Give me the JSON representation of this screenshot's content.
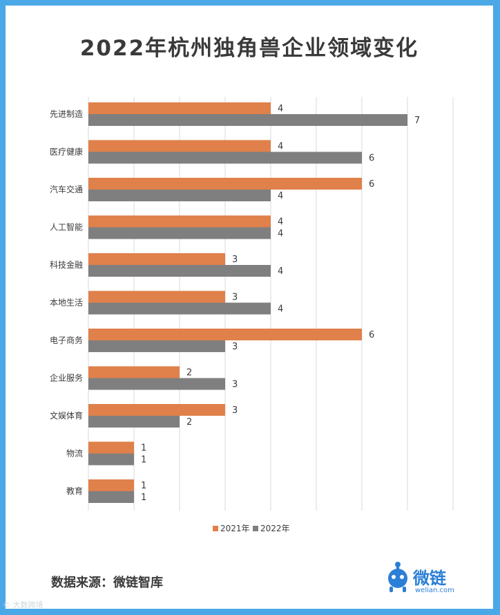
{
  "title": "2022年杭州独角兽企业领域变化",
  "source": "数据来源：微链智库",
  "logo": {
    "name": "微链",
    "domain": "welian.com"
  },
  "watermark": "© 大数跨境",
  "colors": {
    "series_2021": "#e0804a",
    "series_2022": "#7f7f7f",
    "grid": "#d9d9d9",
    "text": "#3a3a3a"
  },
  "chart_data": {
    "type": "bar",
    "orientation": "horizontal",
    "categories": [
      "先进制造",
      "医疗健康",
      "汽车交通",
      "人工智能",
      "科技金融",
      "本地生活",
      "电子商务",
      "企业服务",
      "文娱体育",
      "物流",
      "教育"
    ],
    "series": [
      {
        "name": "2021年",
        "values": [
          4,
          4,
          6,
          4,
          3,
          3,
          6,
          2,
          3,
          1,
          1
        ]
      },
      {
        "name": "2022年",
        "values": [
          7,
          6,
          4,
          4,
          4,
          4,
          3,
          3,
          2,
          1,
          1
        ]
      }
    ],
    "xlim": [
      0,
      8
    ],
    "grid": true,
    "legend": "bottom"
  }
}
